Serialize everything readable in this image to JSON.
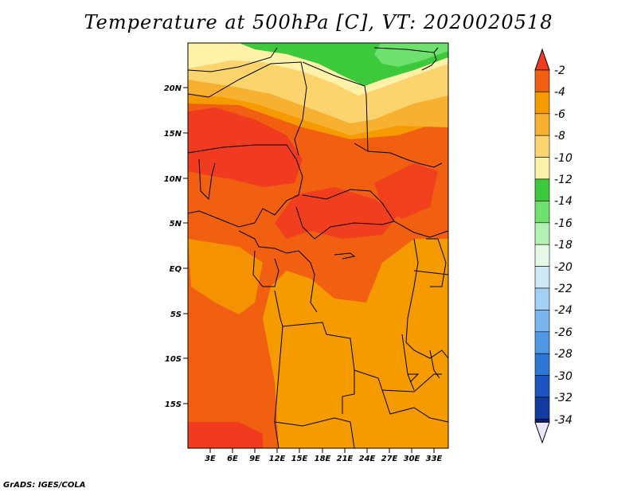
{
  "title": "Temperature at 500hPa [C], VT: 2020020518",
  "credit": "GrADS: IGES/COLA",
  "lat_labels": [
    "20N",
    "15N",
    "10N",
    "5N",
    "EQ",
    "5S",
    "10S",
    "15S"
  ],
  "lon_labels": [
    "3E",
    "6E",
    "9E",
    "12E",
    "15E",
    "18E",
    "21E",
    "24E",
    "27E",
    "30E",
    "33E"
  ],
  "colorbar": {
    "labels": [
      "-2",
      "-4",
      "-6",
      "-8",
      "-10",
      "-12",
      "-14",
      "-16",
      "-18",
      "-20",
      "-22",
      "-24",
      "-26",
      "-28",
      "-30",
      "-32",
      "-34"
    ],
    "colors": [
      "#f03b20",
      "#f06010",
      "#f59b00",
      "#f7b030",
      "#fcd46e",
      "#fdf2a8",
      "#3cc93c",
      "#6ee06e",
      "#b2f2b2",
      "#e4fae4",
      "#cfe8f8",
      "#a3d0f5",
      "#7ab5ee",
      "#4f98e6",
      "#2f77d6",
      "#1d55c0",
      "#123ba0",
      "#0b1a78",
      "#e8e6f8"
    ]
  }
}
